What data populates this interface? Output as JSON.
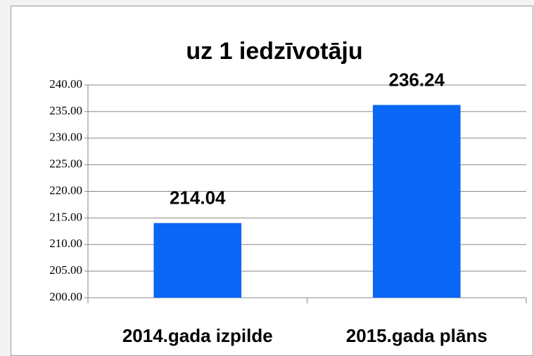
{
  "chart_data": {
    "type": "bar",
    "title": "uz 1 iedzīvotāju",
    "categories": [
      "2014.gada izpilde",
      "2015.gada plāns"
    ],
    "values": [
      214.04,
      236.24
    ],
    "color": "#0a66f5",
    "ylim": [
      200,
      240
    ],
    "yticks": [
      {
        "value": 200,
        "label": "200.00"
      },
      {
        "value": 205,
        "label": "205.00"
      },
      {
        "value": 210,
        "label": "210.00"
      },
      {
        "value": 215,
        "label": "215.00"
      },
      {
        "value": 220,
        "label": "220.00"
      },
      {
        "value": 225,
        "label": "225.00"
      },
      {
        "value": 230,
        "label": "230.00"
      },
      {
        "value": 235,
        "label": "235.00"
      },
      {
        "value": 240,
        "label": "240.00"
      }
    ],
    "grid": true
  }
}
